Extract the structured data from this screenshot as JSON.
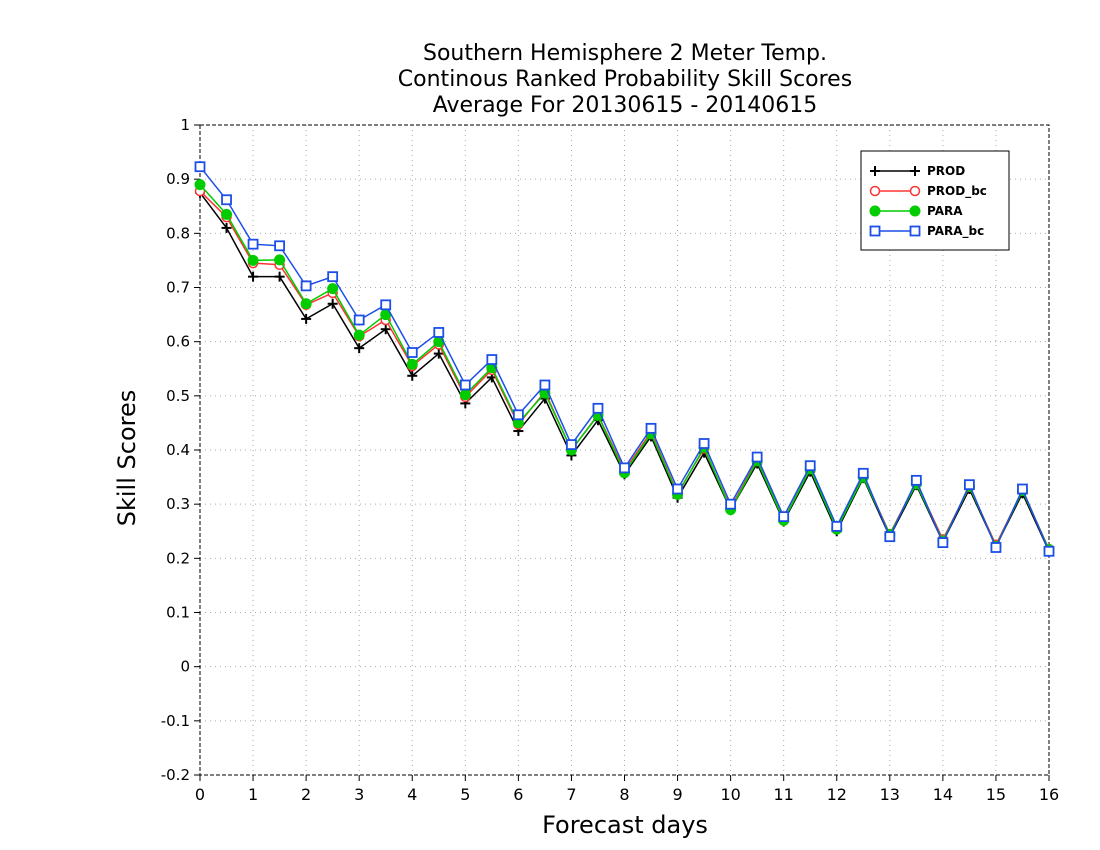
{
  "chart_data": {
    "type": "line",
    "title": [
      "Southern Hemisphere 2 Meter Temp.",
      "Continous Ranked Probability Skill Scores",
      "Average For 20130615 - 20140615"
    ],
    "xlabel": "Forecast days",
    "ylabel": "Skill Scores",
    "xlim": [
      0,
      16
    ],
    "ylim": [
      -0.2,
      1
    ],
    "xticks": [
      "0",
      "1",
      "2",
      "3",
      "4",
      "5",
      "6",
      "7",
      "8",
      "9",
      "10",
      "11",
      "12",
      "13",
      "14",
      "15",
      "16"
    ],
    "yticks": [
      "-0.2",
      "-0.1",
      "0",
      "0.1",
      "0.2",
      "0.3",
      "0.4",
      "0.5",
      "0.6",
      "0.7",
      "0.8",
      "0.9",
      "1"
    ],
    "grid": true,
    "legend_position": "top-right",
    "x": [
      0,
      0.5,
      1,
      1.5,
      2,
      2.5,
      3,
      3.5,
      4,
      4.5,
      5,
      5.5,
      6,
      6.5,
      7,
      7.5,
      8,
      8.5,
      9,
      9.5,
      10,
      10.5,
      11,
      11.5,
      12,
      12.5,
      13,
      13.5,
      14,
      14.5,
      15,
      15.5,
      16
    ],
    "series": [
      {
        "name": "PROD",
        "color": "#000000",
        "marker": "plus",
        "values": [
          0.875,
          0.81,
          0.72,
          0.72,
          0.642,
          0.67,
          0.588,
          0.623,
          0.537,
          0.578,
          0.486,
          0.534,
          0.435,
          0.495,
          0.39,
          0.455,
          0.355,
          0.425,
          0.312,
          0.395,
          0.29,
          0.375,
          0.268,
          0.36,
          0.25,
          0.348,
          0.24,
          0.335,
          0.23,
          0.328,
          0.222,
          0.32,
          0.213
        ]
      },
      {
        "name": "PROD_bc",
        "color": "#ff3333",
        "marker": "circle-open",
        "values": [
          0.878,
          0.83,
          0.745,
          0.742,
          0.668,
          0.69,
          0.61,
          0.64,
          0.555,
          0.595,
          0.498,
          0.548,
          0.447,
          0.508,
          0.4,
          0.465,
          0.362,
          0.433,
          0.32,
          0.403,
          0.293,
          0.382,
          0.27,
          0.366,
          0.255,
          0.352,
          0.245,
          0.34,
          0.235,
          0.332,
          0.225,
          0.325,
          0.217
        ]
      },
      {
        "name": "PARA",
        "color": "#00cc00",
        "marker": "circle-filled",
        "values": [
          0.89,
          0.835,
          0.75,
          0.751,
          0.67,
          0.698,
          0.612,
          0.65,
          0.558,
          0.6,
          0.502,
          0.552,
          0.45,
          0.505,
          0.4,
          0.464,
          0.358,
          0.43,
          0.318,
          0.405,
          0.29,
          0.38,
          0.27,
          0.365,
          0.254,
          0.35,
          0.244,
          0.338,
          0.232,
          0.333,
          0.222,
          0.325,
          0.216
        ]
      },
      {
        "name": "PARA_bc",
        "color": "#1c4fe8",
        "marker": "square-open",
        "values": [
          0.923,
          0.862,
          0.78,
          0.777,
          0.703,
          0.72,
          0.64,
          0.668,
          0.58,
          0.617,
          0.52,
          0.567,
          0.465,
          0.52,
          0.41,
          0.477,
          0.367,
          0.44,
          0.328,
          0.412,
          0.3,
          0.387,
          0.277,
          0.371,
          0.259,
          0.357,
          0.24,
          0.344,
          0.229,
          0.336,
          0.22,
          0.328,
          0.213
        ]
      }
    ]
  }
}
